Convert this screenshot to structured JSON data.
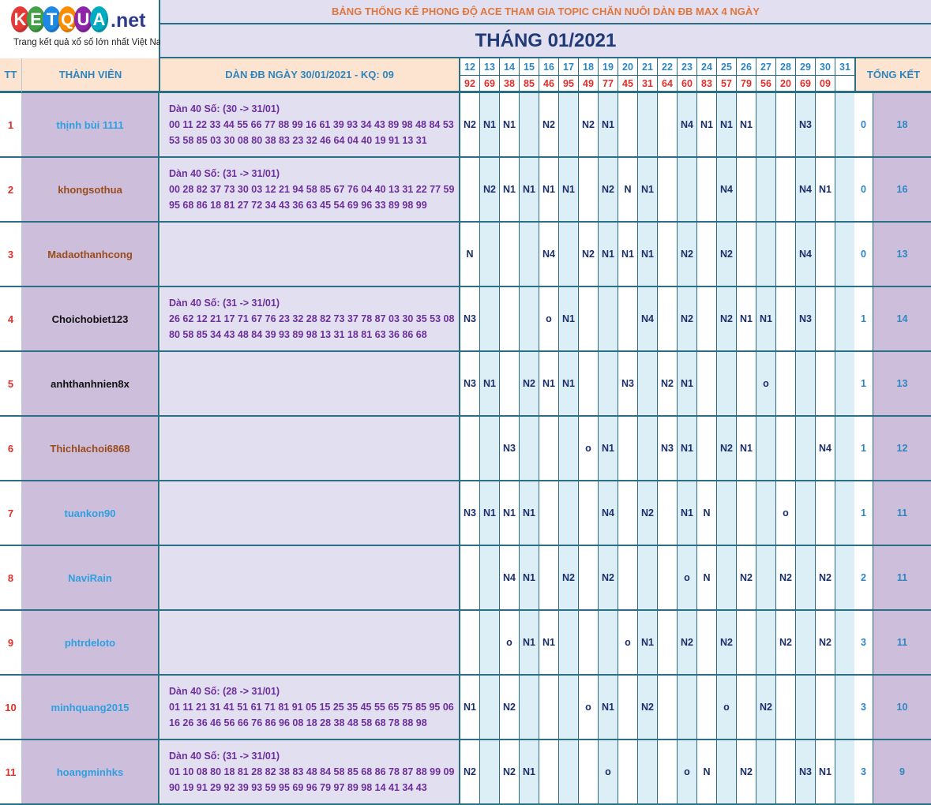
{
  "logo": {
    "letters": [
      "K",
      "E",
      "T",
      "Q",
      "U",
      "A"
    ],
    "colors": [
      "#e53935",
      "#43a047",
      "#1e88e5",
      "#fb8c00",
      "#8e24aa",
      "#00acc1"
    ],
    "suffix": ".net",
    "tagline": "Trang kết quả xổ số lớn nhất Việt Nam"
  },
  "header": {
    "title": "BẢNG THỐNG KÊ PHONG ĐỘ ACE THAM GIA TOPIC CHĂN NUÔI DÀN ĐB MAX 4 NGÀY",
    "month": "THÁNG 01/2021",
    "col_tt": "TT",
    "col_member": "THÀNH VIÊN",
    "col_dan": "DÀN ĐB NGÀY 30/01/2021 - KQ: 09",
    "col_summary": "TỔNG KẾT"
  },
  "days": [
    "12",
    "13",
    "14",
    "15",
    "16",
    "17",
    "18",
    "19",
    "20",
    "21",
    "22",
    "23",
    "24",
    "25",
    "26",
    "27",
    "28",
    "29",
    "30",
    "31"
  ],
  "results": [
    "92",
    "69",
    "38",
    "85",
    "46",
    "95",
    "49",
    "77",
    "45",
    "31",
    "64",
    "60",
    "83",
    "57",
    "79",
    "56",
    "20",
    "69",
    "09",
    ""
  ],
  "rows": [
    {
      "tt": "1",
      "name": "thịnh bùi 1111",
      "name_color": "#2e9fe0",
      "dan": [
        "Dàn 40 Số: (30 -> 31/01)",
        "00 11 22 33 44 55 66 77 88 99 16 61 39 93 34 43 89 98 48 84 53",
        "53 58 85 03 30 08 80 38 83 23 32 46 64 04 40 19 91 13 31"
      ],
      "marks": [
        "N2",
        "N1",
        "N1",
        "",
        "N2",
        "",
        "N2",
        "N1",
        "",
        "",
        "",
        "N4",
        "N1",
        "N1",
        "N1",
        "",
        "",
        "N3",
        "",
        ""
      ],
      "s1": "0",
      "s2": "18"
    },
    {
      "tt": "2",
      "name": "khongsothua",
      "name_color": "#9a4b1c",
      "dan": [
        "Dàn 40 Số: (31 -> 31/01)",
        "00 28 82 37 73 30 03 12 21 94 58 85 67 76 04 40 13 31 22 77 59",
        "95 68 86 18 81 27 72 34 43 36 63 45 54 69 96 33 89 98 99"
      ],
      "marks": [
        "",
        "N2",
        "N1",
        "N1",
        "N1",
        "N1",
        "",
        "N2",
        "N",
        "N1",
        "",
        "",
        "",
        "N4",
        "",
        "",
        "",
        "N4",
        "N1",
        ""
      ],
      "s1": "0",
      "s2": "16"
    },
    {
      "tt": "3",
      "name": "Madaothanhcong",
      "name_color": "#9a4b1c",
      "dan": [],
      "marks": [
        "N",
        "",
        "",
        "",
        "N4",
        "",
        "N2",
        "N1",
        "N1",
        "N1",
        "",
        "N2",
        "",
        "N2",
        "",
        "",
        "",
        "N4",
        "",
        ""
      ],
      "s1": "0",
      "s2": "13"
    },
    {
      "tt": "4",
      "name": "Choichobiet123",
      "name_color": "#111111",
      "dan": [
        "Dàn 40 Số: (31 -> 31/01)",
        "26 62 12 21 17 71 67 76 23 32 28 82 73 37 78 87 03 30 35 53 08",
        "80 58 85 34 43 48 84 39 93 89 98 13 31 18 81 63 36 86 68"
      ],
      "marks": [
        "N3",
        "",
        "",
        "",
        "o",
        "N1",
        "",
        "",
        "",
        "N4",
        "",
        "N2",
        "",
        "N2",
        "N1",
        "N1",
        "",
        "N3",
        "",
        ""
      ],
      "s1": "1",
      "s2": "14"
    },
    {
      "tt": "5",
      "name": "anhthanhnien8x",
      "name_color": "#111111",
      "dan": [],
      "marks": [
        "N3",
        "N1",
        "",
        "N2",
        "N1",
        "N1",
        "",
        "",
        "N3",
        "",
        "N2",
        "N1",
        "",
        "",
        "",
        "o",
        "",
        "",
        "",
        ""
      ],
      "s1": "1",
      "s2": "13"
    },
    {
      "tt": "6",
      "name": "Thichlachoi6868",
      "name_color": "#9a4b1c",
      "dan": [],
      "marks": [
        "",
        "",
        "N3",
        "",
        "",
        "",
        "o",
        "N1",
        "",
        "",
        "N3",
        "N1",
        "",
        "N2",
        "N1",
        "",
        "",
        "",
        "N4",
        ""
      ],
      "s1": "1",
      "s2": "12"
    },
    {
      "tt": "7",
      "name": "tuankon90",
      "name_color": "#2e9fe0",
      "dan": [],
      "marks": [
        "N3",
        "N1",
        "N1",
        "N1",
        "",
        "",
        "",
        "N4",
        "",
        "N2",
        "",
        "N1",
        "N",
        "",
        "",
        "",
        "o",
        "",
        "",
        ""
      ],
      "s1": "1",
      "s2": "11"
    },
    {
      "tt": "8",
      "name": "NaviRain",
      "name_color": "#2e9fe0",
      "dan": [],
      "marks": [
        "",
        "",
        "N4",
        "N1",
        "",
        "N2",
        "",
        "N2",
        "",
        "",
        "",
        "o",
        "N",
        "",
        "N2",
        "",
        "N2",
        "",
        "N2",
        ""
      ],
      "s1": "2",
      "s2": "11"
    },
    {
      "tt": "9",
      "name": "phtrdeloto",
      "name_color": "#2e9fe0",
      "dan": [],
      "marks": [
        "",
        "",
        "o",
        "N1",
        "N1",
        "",
        "",
        "",
        "o",
        "N1",
        "",
        "N2",
        "",
        "N2",
        "",
        "",
        "N2",
        "",
        "N2",
        ""
      ],
      "s1": "3",
      "s2": "11"
    },
    {
      "tt": "10",
      "name": "minhquang2015",
      "name_color": "#2e9fe0",
      "dan": [
        "Dàn 40 Số: (28 -> 31/01)",
        "01 11 21 31 41 51 61 71 81 91 05 15 25 35 45 55 65 75 85 95 06",
        "16 26 36 46 56 66 76 86 96 08 18 28 38 48 58 68 78 88 98"
      ],
      "marks": [
        "N1",
        "",
        "N2",
        "",
        "",
        "",
        "o",
        "N1",
        "",
        "N2",
        "",
        "",
        "",
        "o",
        "",
        "N2",
        "",
        "",
        "",
        ""
      ],
      "s1": "3",
      "s2": "10"
    },
    {
      "tt": "11",
      "name": "hoangminhks",
      "name_color": "#2e9fe0",
      "dan": [
        "Dàn 40 Số: (31 -> 31/01)",
        "01 10 08 80 18 81 28 82 38 83 48 84 58 85 68 86 78 87 88 99 09",
        "90 19 91 29 92 39 93 59 95 69 96 79 97 89 98 14 41 34 43"
      ],
      "marks": [
        "N2",
        "",
        "N2",
        "N1",
        "",
        "",
        "",
        "o",
        "",
        "",
        "",
        "o",
        "N",
        "",
        "N2",
        "",
        "",
        "N3",
        "N1",
        ""
      ],
      "s1": "3",
      "s2": "9"
    }
  ]
}
